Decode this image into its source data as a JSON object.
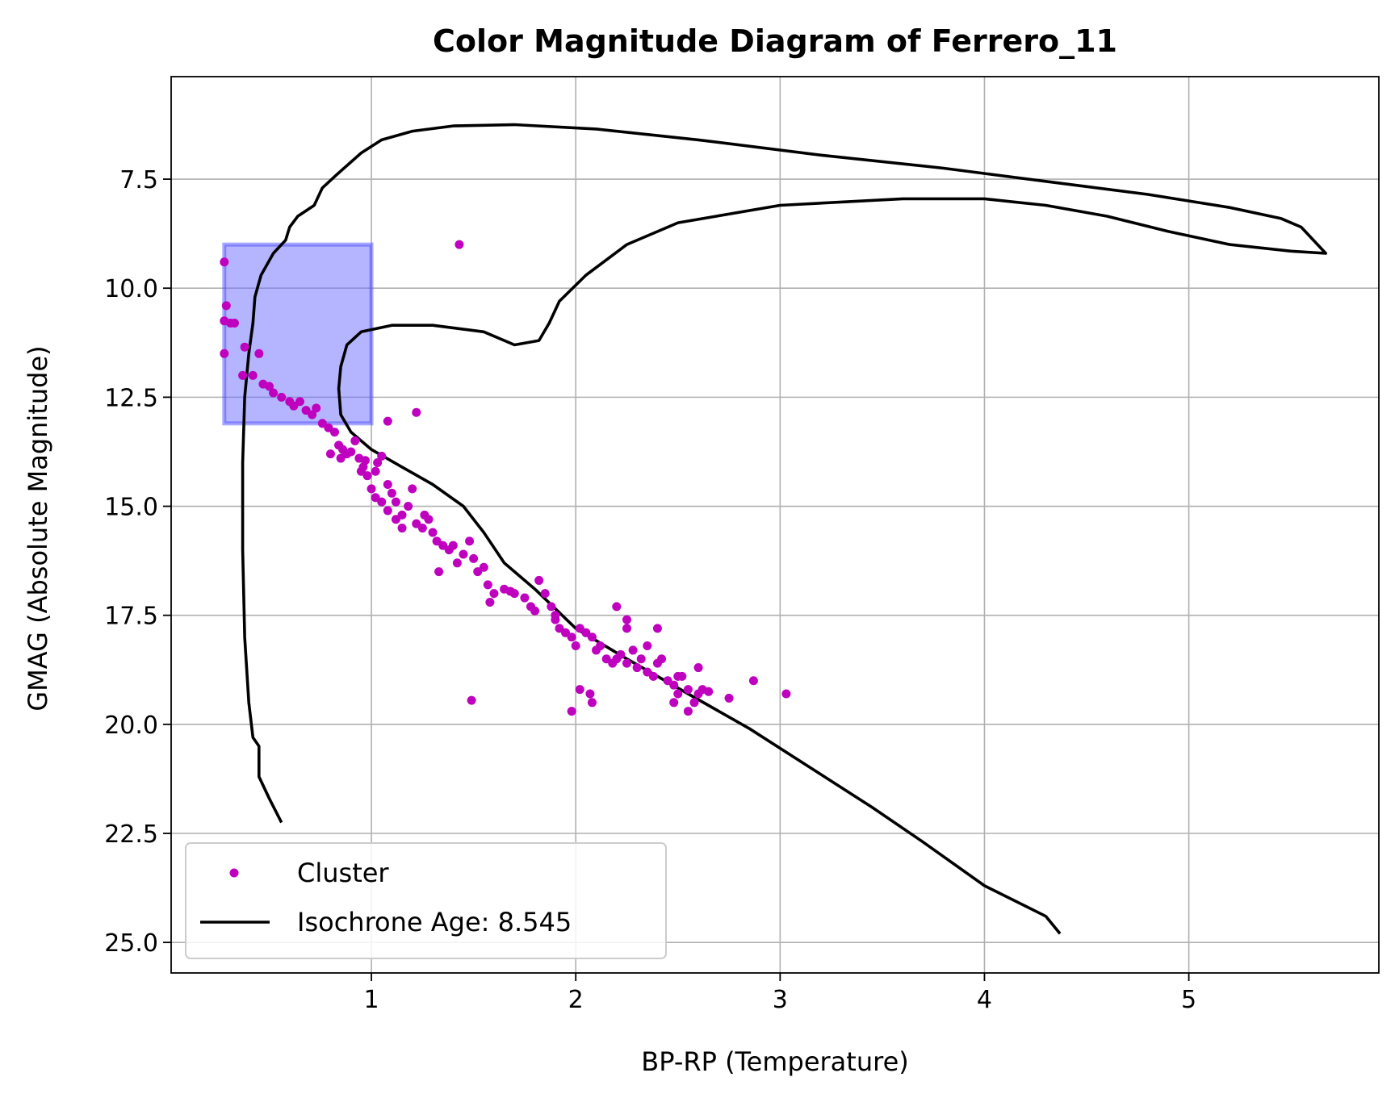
{
  "chart_data": {
    "type": "scatter",
    "title": "Color Magnitude Diagram of Ferrero_11",
    "xlabel": "BP-RP (Temperature)",
    "ylabel": "GMAG (Absolute Magnitude)",
    "xlim": [
      0.02,
      5.93
    ],
    "ylim": [
      25.7,
      5.15
    ],
    "y_inverted": true,
    "xticks": [
      1,
      2,
      3,
      4,
      5
    ],
    "xtick_labels": [
      "1",
      "2",
      "3",
      "4",
      "5"
    ],
    "yticks": [
      7.5,
      10.0,
      12.5,
      15.0,
      17.5,
      20.0,
      22.5,
      25.0
    ],
    "ytick_labels": [
      "7.5",
      "10.0",
      "12.5",
      "15.0",
      "17.5",
      "20.0",
      "22.5",
      "25.0"
    ],
    "grid": true,
    "legend_position": "lower-left",
    "colors": {
      "cluster": "#bf00bf",
      "isochrone": "#000000",
      "highlight_fill": "#6b6bff",
      "highlight_edge": "#4040ff",
      "grid": "#b0b0b0"
    },
    "highlight_region": {
      "x": [
        0.28,
        1.0
      ],
      "y": [
        9.0,
        13.1
      ]
    },
    "series": [
      {
        "name": "Cluster",
        "kind": "scatter",
        "points": [
          [
            0.28,
            9.4
          ],
          [
            0.29,
            10.4
          ],
          [
            0.28,
            10.75
          ],
          [
            0.31,
            10.8
          ],
          [
            0.33,
            10.8
          ],
          [
            0.28,
            11.5
          ],
          [
            1.43,
            9.0
          ],
          [
            0.37,
            12.0
          ],
          [
            0.42,
            12.0
          ],
          [
            0.38,
            11.35
          ],
          [
            0.45,
            11.5
          ],
          [
            0.47,
            12.2
          ],
          [
            0.5,
            12.25
          ],
          [
            0.52,
            12.4
          ],
          [
            0.56,
            12.5
          ],
          [
            0.6,
            12.6
          ],
          [
            0.62,
            12.7
          ],
          [
            0.65,
            12.6
          ],
          [
            0.68,
            12.8
          ],
          [
            0.71,
            12.9
          ],
          [
            0.73,
            12.75
          ],
          [
            0.76,
            13.1
          ],
          [
            0.79,
            13.2
          ],
          [
            0.82,
            13.3
          ],
          [
            0.8,
            13.8
          ],
          [
            0.84,
            13.6
          ],
          [
            0.86,
            13.7
          ],
          [
            0.88,
            13.8
          ],
          [
            0.85,
            13.9
          ],
          [
            0.9,
            13.75
          ],
          [
            0.92,
            13.5
          ],
          [
            0.94,
            13.9
          ],
          [
            0.96,
            14.1
          ],
          [
            0.98,
            14.3
          ],
          [
            0.95,
            14.2
          ],
          [
            1.0,
            14.6
          ],
          [
            1.03,
            14.0
          ],
          [
            1.05,
            13.85
          ],
          [
            1.02,
            14.8
          ],
          [
            1.05,
            14.9
          ],
          [
            1.08,
            14.5
          ],
          [
            1.1,
            14.7
          ],
          [
            1.12,
            14.9
          ],
          [
            1.08,
            15.1
          ],
          [
            1.12,
            15.3
          ],
          [
            1.15,
            15.2
          ],
          [
            1.18,
            15.0
          ],
          [
            1.2,
            14.6
          ],
          [
            1.22,
            15.4
          ],
          [
            1.25,
            15.5
          ],
          [
            1.28,
            15.3
          ],
          [
            1.3,
            15.6
          ],
          [
            1.32,
            15.8
          ],
          [
            1.35,
            15.9
          ],
          [
            1.38,
            16.0
          ],
          [
            1.33,
            16.5
          ],
          [
            1.42,
            16.3
          ],
          [
            1.45,
            16.1
          ],
          [
            1.48,
            15.8
          ],
          [
            1.5,
            16.2
          ],
          [
            1.52,
            16.5
          ],
          [
            1.55,
            16.4
          ],
          [
            1.57,
            16.8
          ],
          [
            1.58,
            17.2
          ],
          [
            1.6,
            17.0
          ],
          [
            1.65,
            16.9
          ],
          [
            1.7,
            17.0
          ],
          [
            1.75,
            17.1
          ],
          [
            1.78,
            17.3
          ],
          [
            1.8,
            17.4
          ],
          [
            1.85,
            17.0
          ],
          [
            1.88,
            17.3
          ],
          [
            1.9,
            17.6
          ],
          [
            1.92,
            17.8
          ],
          [
            1.95,
            17.9
          ],
          [
            1.98,
            18.0
          ],
          [
            2.0,
            18.2
          ],
          [
            2.02,
            17.8
          ],
          [
            2.05,
            17.9
          ],
          [
            2.08,
            18.0
          ],
          [
            2.1,
            18.3
          ],
          [
            2.12,
            18.2
          ],
          [
            2.15,
            18.5
          ],
          [
            2.18,
            18.6
          ],
          [
            2.2,
            18.5
          ],
          [
            2.22,
            18.4
          ],
          [
            2.25,
            18.6
          ],
          [
            2.28,
            18.3
          ],
          [
            2.3,
            18.7
          ],
          [
            2.32,
            18.5
          ],
          [
            2.35,
            18.2
          ],
          [
            2.38,
            18.9
          ],
          [
            2.4,
            18.6
          ],
          [
            2.42,
            18.5
          ],
          [
            2.45,
            19.0
          ],
          [
            2.48,
            19.1
          ],
          [
            2.5,
            19.3
          ],
          [
            2.52,
            18.9
          ],
          [
            2.55,
            19.2
          ],
          [
            2.58,
            19.5
          ],
          [
            2.6,
            19.3
          ],
          [
            2.62,
            19.2
          ],
          [
            2.65,
            19.25
          ],
          [
            2.2,
            17.3
          ],
          [
            2.25,
            17.6
          ],
          [
            2.4,
            17.8
          ],
          [
            2.02,
            19.2
          ],
          [
            2.07,
            19.3
          ],
          [
            2.08,
            19.5
          ],
          [
            1.98,
            19.7
          ],
          [
            2.55,
            19.7
          ],
          [
            2.75,
            19.4
          ],
          [
            2.87,
            19.0
          ],
          [
            3.03,
            19.3
          ],
          [
            1.49,
            19.45
          ],
          [
            1.08,
            13.05
          ],
          [
            1.22,
            12.85
          ],
          [
            1.82,
            16.7
          ],
          [
            2.25,
            17.8
          ],
          [
            2.6,
            18.7
          ],
          [
            2.5,
            18.9
          ],
          [
            1.9,
            17.5
          ],
          [
            1.68,
            16.95
          ],
          [
            1.4,
            15.9
          ],
          [
            1.15,
            15.5
          ],
          [
            1.02,
            14.2
          ],
          [
            0.97,
            13.95
          ],
          [
            1.26,
            15.2
          ],
          [
            2.35,
            18.8
          ],
          [
            2.48,
            19.5
          ]
        ]
      },
      {
        "name": "Isochrone Age: 8.545",
        "kind": "line",
        "points": [
          [
            0.56,
            22.25
          ],
          [
            0.5,
            21.7
          ],
          [
            0.45,
            21.2
          ],
          [
            0.45,
            20.5
          ],
          [
            0.42,
            20.3
          ],
          [
            0.4,
            19.5
          ],
          [
            0.38,
            18.0
          ],
          [
            0.37,
            16.0
          ],
          [
            0.37,
            14.0
          ],
          [
            0.38,
            12.5
          ],
          [
            0.4,
            11.5
          ],
          [
            0.42,
            10.8
          ],
          [
            0.43,
            10.2
          ],
          [
            0.46,
            9.7
          ],
          [
            0.52,
            9.2
          ],
          [
            0.58,
            8.9
          ],
          [
            0.6,
            8.6
          ],
          [
            0.64,
            8.35
          ],
          [
            0.72,
            8.1
          ],
          [
            0.76,
            7.7
          ],
          [
            0.83,
            7.4
          ],
          [
            0.95,
            6.9
          ],
          [
            1.05,
            6.6
          ],
          [
            1.2,
            6.4
          ],
          [
            1.4,
            6.28
          ],
          [
            1.7,
            6.25
          ],
          [
            2.1,
            6.35
          ],
          [
            2.6,
            6.6
          ],
          [
            3.2,
            6.95
          ],
          [
            3.8,
            7.25
          ],
          [
            4.3,
            7.55
          ],
          [
            4.8,
            7.85
          ],
          [
            5.2,
            8.15
          ],
          [
            5.45,
            8.4
          ],
          [
            5.55,
            8.6
          ],
          [
            5.67,
            9.2
          ],
          [
            5.5,
            9.15
          ],
          [
            5.2,
            9.0
          ],
          [
            4.9,
            8.7
          ],
          [
            4.6,
            8.35
          ],
          [
            4.3,
            8.1
          ],
          [
            4.0,
            7.95
          ],
          [
            3.6,
            7.95
          ],
          [
            3.0,
            8.1
          ],
          [
            2.5,
            8.5
          ],
          [
            2.25,
            9.0
          ],
          [
            2.05,
            9.7
          ],
          [
            1.92,
            10.3
          ],
          [
            1.87,
            10.8
          ],
          [
            1.82,
            11.2
          ],
          [
            1.7,
            11.3
          ],
          [
            1.55,
            11.0
          ],
          [
            1.3,
            10.85
          ],
          [
            1.1,
            10.85
          ],
          [
            0.95,
            11.0
          ],
          [
            0.88,
            11.3
          ],
          [
            0.85,
            11.8
          ],
          [
            0.84,
            12.3
          ],
          [
            0.85,
            12.9
          ],
          [
            0.9,
            13.3
          ],
          [
            1.0,
            13.7
          ],
          [
            1.15,
            14.1
          ],
          [
            1.3,
            14.5
          ],
          [
            1.45,
            15.0
          ],
          [
            1.55,
            15.6
          ],
          [
            1.65,
            16.3
          ],
          [
            1.8,
            16.9
          ],
          [
            2.0,
            17.8
          ],
          [
            2.25,
            18.5
          ],
          [
            2.55,
            19.3
          ],
          [
            2.85,
            20.1
          ],
          [
            3.15,
            21.0
          ],
          [
            3.45,
            21.9
          ],
          [
            3.7,
            22.7
          ],
          [
            4.0,
            23.7
          ],
          [
            4.3,
            24.4
          ],
          [
            4.37,
            24.8
          ]
        ]
      }
    ],
    "legend": [
      {
        "label": "Cluster",
        "kind": "scatter"
      },
      {
        "label": "Isochrone Age: 8.545",
        "kind": "line"
      }
    ]
  }
}
